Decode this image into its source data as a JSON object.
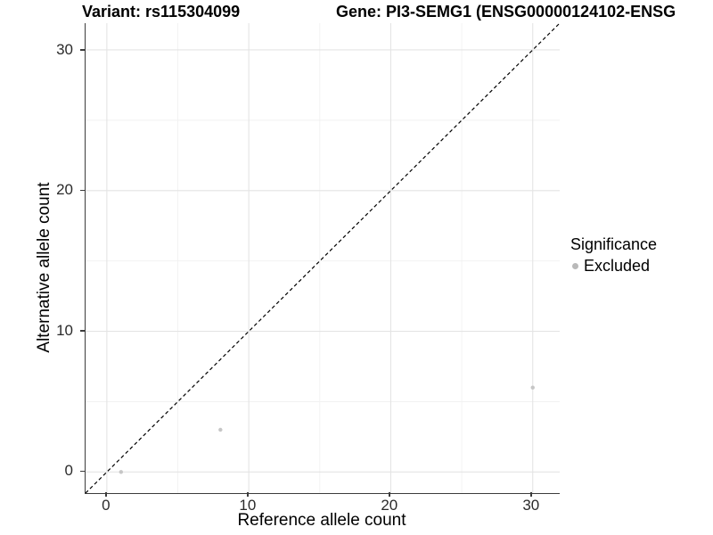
{
  "titles": {
    "variant": "Variant: rs115304099",
    "gene": "Gene: PI3-SEMG1 (ENSG00000124102-ENSG"
  },
  "chart_data": {
    "type": "scatter",
    "xlabel": "Reference allele count",
    "ylabel": "Alternative allele count",
    "x_ticks": [
      0,
      10,
      20,
      30
    ],
    "y_ticks": [
      0,
      10,
      20,
      30
    ],
    "x_minor_ticks": [
      5,
      15,
      25
    ],
    "y_minor_ticks": [
      5,
      15,
      25
    ],
    "xlim": [
      -1.5,
      31.9
    ],
    "ylim": [
      -1.5,
      31.9
    ],
    "grid": "major and minor gridlines, white panel background",
    "identity_line": {
      "style": "dashed",
      "color": "#000000",
      "slope": 1,
      "intercept": 0
    },
    "series": [
      {
        "name": "Excluded",
        "marker": "circle",
        "color": "#c6c6c6",
        "points": [
          {
            "x": 1,
            "y": 0
          },
          {
            "x": 8,
            "y": 3
          },
          {
            "x": 30,
            "y": 6
          }
        ]
      }
    ],
    "legend": {
      "title": "Significance",
      "position": "right",
      "entries": [
        {
          "label": "Excluded",
          "color": "#b9b9b9"
        }
      ]
    }
  },
  "colors": {
    "grid_major": "#e4e4e4",
    "grid_minor": "#f1f1f1",
    "axis_line": "#3c3c3c",
    "text": "#000000"
  }
}
